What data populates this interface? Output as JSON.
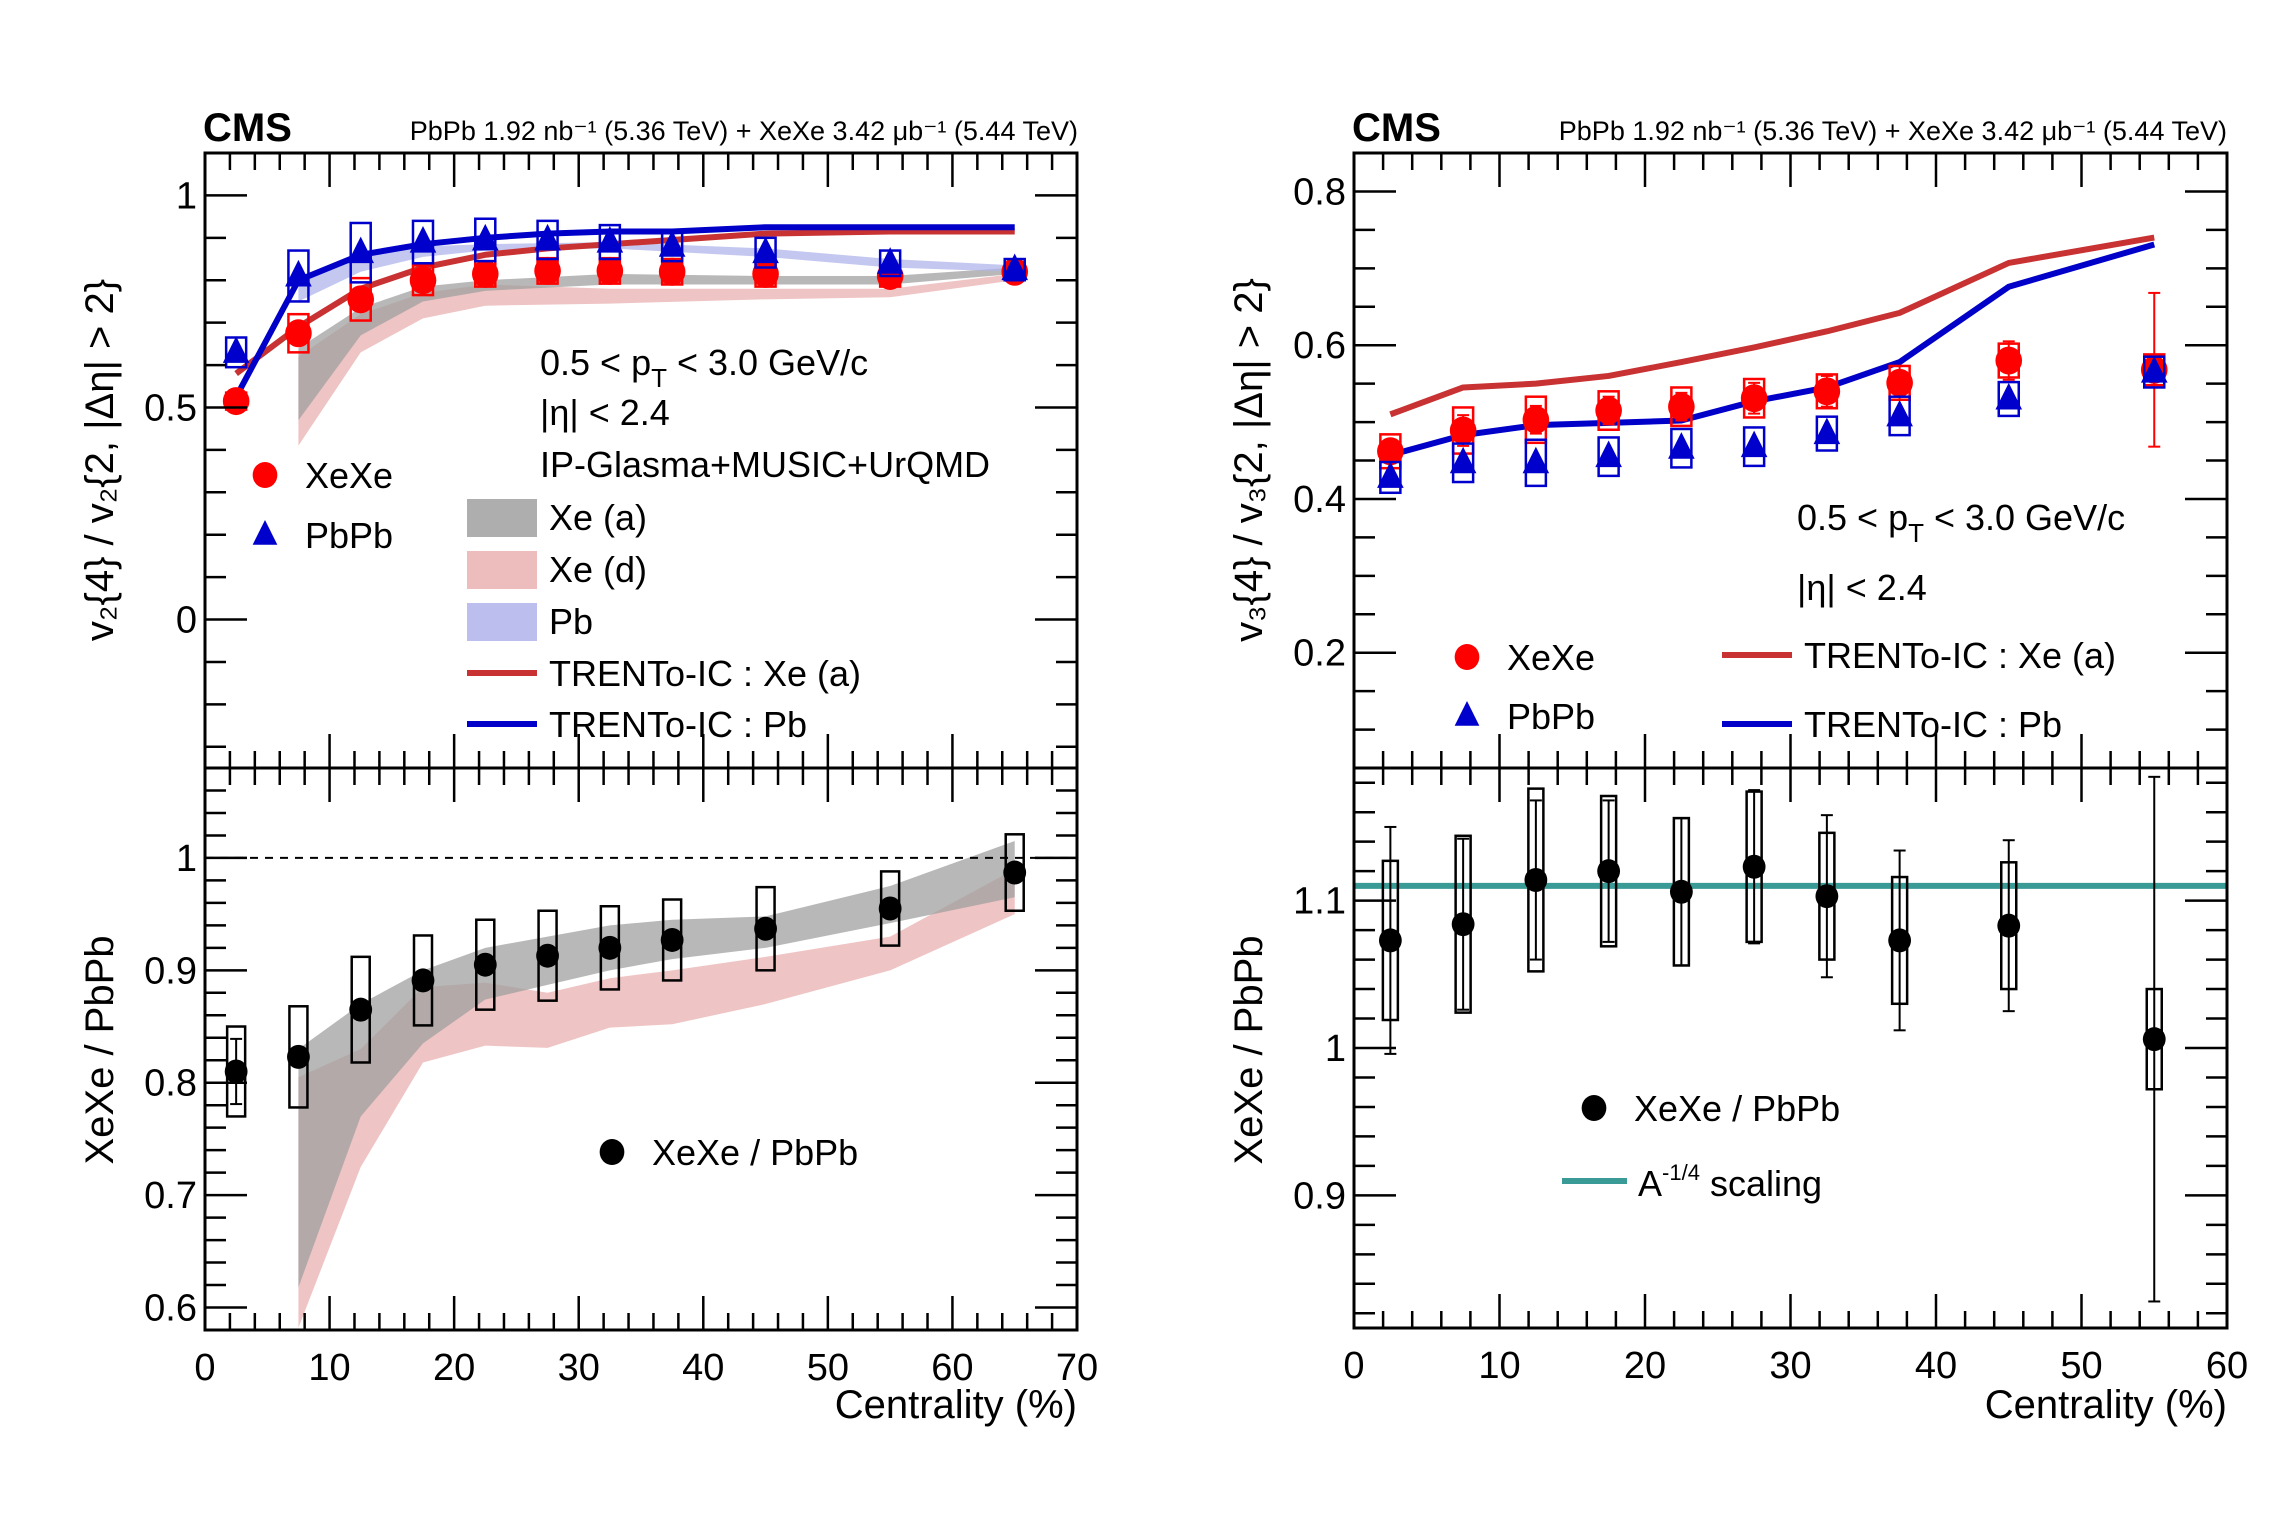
{
  "colors": {
    "xexe": "#ff0000",
    "pbpb": "#0000cc",
    "ratio": "#000000",
    "trento_xe": "#c83232",
    "trento_pb": "#0000c8",
    "band_xe_a": "#a0a0a0",
    "band_xe_d": "#eab0b0",
    "band_pb": "#b0b4ea",
    "scaling": "#3a9a96"
  },
  "chart_data": [
    {
      "id": "v2-top",
      "type": "scatter",
      "header": {
        "cms": "CMS",
        "lumi": "PbPb 1.92 nb⁻¹ (5.36 TeV) + XeXe 3.42 μb⁻¹ (5.44 TeV)"
      },
      "ylabel": "v₂{4} / v₂{2, |Δη| > 2}",
      "xlim": [
        0,
        70
      ],
      "ylim": [
        -0.35,
        1.1
      ],
      "yticks": [
        0,
        0.5,
        1
      ],
      "ytick_labels": [
        "0",
        "0.5",
        "1"
      ],
      "annotations": [
        "0.5 < p_T < 3.0 GeV/c",
        "|η| < 2.4",
        "IP-Glasma+MUSIC+UrQMD"
      ],
      "legend": {
        "markers": [
          {
            "label": "XeXe",
            "series": "xexe"
          },
          {
            "label": "PbPb",
            "series": "pbpb"
          }
        ],
        "models": [
          {
            "label": "Xe (a)",
            "kind": "band",
            "color": "band_xe_a"
          },
          {
            "label": "Xe (d)",
            "kind": "band",
            "color": "band_xe_d"
          },
          {
            "label": "Pb",
            "kind": "band",
            "color": "band_pb"
          },
          {
            "label": "TRENTo-IC : Xe (a)",
            "kind": "line",
            "color": "trento_xe"
          },
          {
            "label": "TRENTo-IC : Pb",
            "kind": "line",
            "color": "trento_pb"
          }
        ]
      },
      "series": [
        {
          "name": "XeXe",
          "key": "xexe",
          "marker": "circle",
          "x": [
            2.5,
            7.5,
            12.5,
            17.5,
            22.5,
            27.5,
            32.5,
            37.5,
            45,
            55,
            65
          ],
          "y": [
            0.515,
            0.675,
            0.755,
            0.8,
            0.815,
            0.822,
            0.822,
            0.82,
            0.815,
            0.81,
            0.82
          ],
          "sys": [
            0.02,
            0.045,
            0.05,
            0.035,
            0.03,
            0.03,
            0.03,
            0.03,
            0.03,
            0.025,
            0.02
          ]
        },
        {
          "name": "PbPb",
          "key": "pbpb",
          "marker": "triangle",
          "x": [
            2.5,
            7.5,
            12.5,
            17.5,
            22.5,
            27.5,
            32.5,
            37.5,
            45,
            55,
            65
          ],
          "y": [
            0.63,
            0.81,
            0.865,
            0.89,
            0.895,
            0.895,
            0.89,
            0.88,
            0.865,
            0.84,
            0.825
          ],
          "sys": [
            0.035,
            0.06,
            0.07,
            0.05,
            0.05,
            0.045,
            0.04,
            0.035,
            0.035,
            0.03,
            0.025
          ]
        }
      ],
      "bands": [
        {
          "name": "Xe (d)",
          "color": "band_xe_d",
          "x": [
            7.5,
            12.5,
            17.5,
            22.5,
            32.5,
            45,
            55,
            65
          ],
          "lo": [
            0.41,
            0.63,
            0.71,
            0.74,
            0.745,
            0.755,
            0.76,
            0.8
          ],
          "hi": [
            0.62,
            0.72,
            0.77,
            0.79,
            0.78,
            0.78,
            0.78,
            0.815
          ]
        },
        {
          "name": "Xe (a)",
          "color": "band_xe_a",
          "x": [
            7.5,
            12.5,
            17.5,
            22.5,
            32.5,
            45,
            55,
            65
          ],
          "lo": [
            0.47,
            0.67,
            0.75,
            0.775,
            0.79,
            0.79,
            0.79,
            0.815
          ],
          "hi": [
            0.64,
            0.735,
            0.785,
            0.8,
            0.815,
            0.81,
            0.81,
            0.83
          ]
        },
        {
          "name": "Pb",
          "color": "band_pb",
          "x": [
            7.5,
            12.5,
            17.5,
            22.5,
            32.5,
            45,
            55,
            65
          ],
          "lo": [
            0.75,
            0.82,
            0.855,
            0.87,
            0.875,
            0.855,
            0.83,
            0.82
          ],
          "hi": [
            0.795,
            0.855,
            0.88,
            0.885,
            0.89,
            0.875,
            0.85,
            0.835
          ]
        }
      ],
      "lines": [
        {
          "name": "TRENTo-IC : Xe (a)",
          "color": "trento_xe",
          "x": [
            2.5,
            7.5,
            12.5,
            17.5,
            22.5,
            27.5,
            32.5,
            37.5,
            45,
            55,
            65
          ],
          "y": [
            0.58,
            0.69,
            0.78,
            0.83,
            0.86,
            0.875,
            0.885,
            0.895,
            0.91,
            0.915,
            0.915
          ]
        },
        {
          "name": "TRENTo-IC : Pb",
          "color": "trento_pb",
          "x": [
            2.5,
            7.5,
            12.5,
            17.5,
            22.5,
            27.5,
            32.5,
            37.5,
            45,
            55,
            65
          ],
          "y": [
            0.525,
            0.8,
            0.86,
            0.885,
            0.9,
            0.91,
            0.915,
            0.915,
            0.925,
            0.925,
            0.925
          ]
        }
      ]
    },
    {
      "id": "v2-ratio",
      "type": "scatter",
      "xlabel": "Centrality (%)",
      "ylabel": "XeXe / PbPb",
      "xlim": [
        0,
        70
      ],
      "ylim": [
        0.58,
        1.08
      ],
      "xticks": [
        0,
        10,
        20,
        30,
        40,
        50,
        60,
        70
      ],
      "xtick_labels": [
        "0",
        "10",
        "20",
        "30",
        "40",
        "50",
        "60",
        "70"
      ],
      "yticks": [
        0.6,
        0.7,
        0.8,
        0.9,
        1.0
      ],
      "ytick_labels": [
        "0.6",
        "0.7",
        "0.8",
        "0.9",
        "1"
      ],
      "reference_line": 1.0,
      "legend": {
        "markers": [
          {
            "label": "XeXe / PbPb",
            "series": "ratio"
          }
        ]
      },
      "series": [
        {
          "name": "XeXe / PbPb",
          "key": "ratio",
          "marker": "circle",
          "x": [
            2.5,
            7.5,
            12.5,
            17.5,
            22.5,
            27.5,
            32.5,
            37.5,
            45,
            55,
            65
          ],
          "y": [
            0.81,
            0.823,
            0.865,
            0.891,
            0.905,
            0.913,
            0.92,
            0.927,
            0.937,
            0.955,
            0.987
          ],
          "stat": [
            0.029,
            0,
            0,
            0,
            0,
            0,
            0,
            0,
            0,
            0,
            0
          ],
          "sys": [
            0.04,
            0.045,
            0.047,
            0.04,
            0.04,
            0.04,
            0.037,
            0.036,
            0.037,
            0.033,
            0.034
          ]
        }
      ],
      "bands": [
        {
          "name": "Xe (d)",
          "color": "band_xe_d",
          "x": [
            7.5,
            12.5,
            17.5,
            22.5,
            27.5,
            32.5,
            37.5,
            45,
            55,
            65
          ],
          "lo": [
            0.582,
            0.725,
            0.818,
            0.833,
            0.831,
            0.849,
            0.852,
            0.87,
            0.9,
            0.95
          ],
          "hi": [
            0.805,
            0.83,
            0.885,
            0.889,
            0.88,
            0.893,
            0.9,
            0.912,
            0.93,
            0.99
          ]
        },
        {
          "name": "Xe (a)",
          "color": "band_xe_a",
          "x": [
            7.5,
            12.5,
            17.5,
            22.5,
            27.5,
            32.5,
            37.5,
            45,
            55,
            65
          ],
          "lo": [
            0.618,
            0.77,
            0.835,
            0.874,
            0.887,
            0.9,
            0.91,
            0.92,
            0.942,
            0.965
          ],
          "hi": [
            0.83,
            0.87,
            0.9,
            0.92,
            0.93,
            0.94,
            0.945,
            0.948,
            0.975,
            1.015
          ]
        }
      ]
    },
    {
      "id": "v3-top",
      "type": "scatter",
      "header": {
        "cms": "CMS",
        "lumi": "PbPb 1.92 nb⁻¹ (5.36 TeV) + XeXe 3.42 μb⁻¹ (5.44 TeV)"
      },
      "ylabel": "v₃{4} / v₃{2, |Δη| > 2}",
      "xlim": [
        0,
        60
      ],
      "ylim": [
        0.05,
        0.85
      ],
      "yticks": [
        0.2,
        0.4,
        0.6,
        0.8
      ],
      "ytick_labels": [
        "0.2",
        "0.4",
        "0.6",
        "0.8"
      ],
      "annotations": [
        "0.5 < p_T < 3.0 GeV/c",
        "|η| < 2.4"
      ],
      "legend": {
        "markers": [
          {
            "label": "XeXe",
            "series": "xexe"
          },
          {
            "label": "PbPb",
            "series": "pbpb"
          }
        ],
        "models": [
          {
            "label": "TRENTo-IC : Xe (a)",
            "kind": "line",
            "color": "trento_xe"
          },
          {
            "label": "TRENTo-IC : Pb",
            "kind": "line",
            "color": "trento_pb"
          }
        ]
      },
      "series": [
        {
          "name": "XeXe",
          "key": "xexe",
          "marker": "circle",
          "x": [
            2.5,
            7.5,
            12.5,
            17.5,
            22.5,
            27.5,
            32.5,
            37.5,
            45,
            55
          ],
          "y": [
            0.462,
            0.489,
            0.503,
            0.515,
            0.52,
            0.531,
            0.54,
            0.551,
            0.58,
            0.568
          ],
          "stat": [
            0.015,
            0.02,
            0.018,
            0.018,
            0.018,
            0.02,
            0.02,
            0.022,
            0.025,
            0.1
          ],
          "sys": [
            0.022,
            0.03,
            0.03,
            0.025,
            0.025,
            0.025,
            0.022,
            0.022,
            0.022,
            0.02
          ]
        },
        {
          "name": "PbPb",
          "key": "pbpb",
          "marker": "triangle",
          "x": [
            2.5,
            7.5,
            12.5,
            17.5,
            22.5,
            27.5,
            32.5,
            37.5,
            45,
            55
          ],
          "y": [
            0.428,
            0.447,
            0.447,
            0.455,
            0.466,
            0.468,
            0.485,
            0.508,
            0.53,
            0.565
          ],
          "sys": [
            0.02,
            0.025,
            0.03,
            0.025,
            0.025,
            0.025,
            0.022,
            0.025,
            0.022,
            0.02
          ]
        }
      ],
      "lines": [
        {
          "name": "TRENTo-IC : Xe (a)",
          "color": "trento_xe",
          "x": [
            2.5,
            7.5,
            12.5,
            17.5,
            22.5,
            27.5,
            32.5,
            37.5,
            45,
            55
          ],
          "y": [
            0.51,
            0.545,
            0.55,
            0.56,
            0.578,
            0.597,
            0.618,
            0.642,
            0.707,
            0.74
          ]
        },
        {
          "name": "TRENTo-IC : Pb",
          "color": "trento_pb",
          "x": [
            2.5,
            7.5,
            12.5,
            17.5,
            22.5,
            27.5,
            32.5,
            37.5,
            45,
            55
          ],
          "y": [
            0.457,
            0.483,
            0.496,
            0.499,
            0.502,
            0.527,
            0.545,
            0.578,
            0.676,
            0.731
          ]
        }
      ]
    },
    {
      "id": "v3-ratio",
      "type": "scatter",
      "xlabel": "Centrality (%)",
      "ylabel": "XeXe / PbPb",
      "xlim": [
        0,
        60
      ],
      "ylim": [
        0.81,
        1.19
      ],
      "xticks": [
        0,
        10,
        20,
        30,
        40,
        50,
        60
      ],
      "xtick_labels": [
        "0",
        "10",
        "20",
        "30",
        "40",
        "50",
        "60"
      ],
      "yticks": [
        0.9,
        1.0,
        1.1
      ],
      "ytick_labels": [
        "0.9",
        "1",
        "1.1"
      ],
      "scaling_line": 1.11,
      "legend": {
        "markers": [
          {
            "label": "XeXe / PbPb",
            "series": "ratio"
          }
        ],
        "models": [
          {
            "label": "A⁻¹ᐟ⁴ scaling",
            "label_base": "A",
            "label_sup": "-1/4",
            "label_rest": " scaling",
            "kind": "line",
            "color": "scaling"
          }
        ]
      },
      "series": [
        {
          "name": "XeXe / PbPb",
          "key": "ratio",
          "marker": "circle",
          "x": [
            2.5,
            7.5,
            12.5,
            17.5,
            22.5,
            27.5,
            32.5,
            37.5,
            45,
            55
          ],
          "y": [
            1.073,
            1.084,
            1.114,
            1.12,
            1.106,
            1.123,
            1.103,
            1.073,
            1.083,
            1.006
          ],
          "stat": [
            0.077,
            0.058,
            0.054,
            0.048,
            0.05,
            0.052,
            0.055,
            0.061,
            0.058,
            0.178
          ],
          "sys": [
            0.054,
            0.06,
            0.062,
            0.051,
            0.05,
            0.051,
            0.043,
            0.043,
            0.043,
            0.034
          ]
        }
      ]
    }
  ]
}
